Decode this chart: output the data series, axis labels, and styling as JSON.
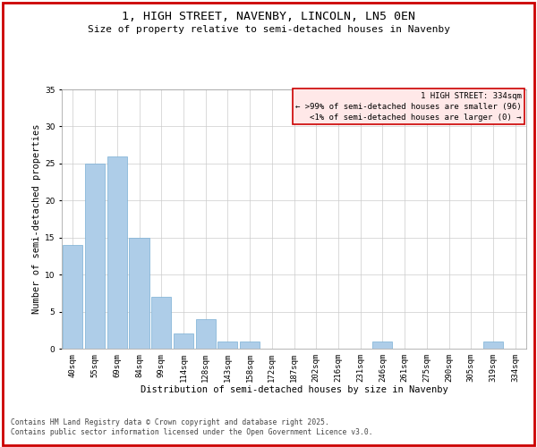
{
  "title": "1, HIGH STREET, NAVENBY, LINCOLN, LN5 0EN",
  "subtitle": "Size of property relative to semi-detached houses in Navenby",
  "xlabel": "Distribution of semi-detached houses by size in Navenby",
  "ylabel": "Number of semi-detached properties",
  "categories": [
    "40sqm",
    "55sqm",
    "69sqm",
    "84sqm",
    "99sqm",
    "114sqm",
    "128sqm",
    "143sqm",
    "158sqm",
    "172sqm",
    "187sqm",
    "202sqm",
    "216sqm",
    "231sqm",
    "246sqm",
    "261sqm",
    "275sqm",
    "290sqm",
    "305sqm",
    "319sqm",
    "334sqm"
  ],
  "values": [
    14,
    25,
    26,
    15,
    7,
    2,
    4,
    1,
    1,
    0,
    0,
    0,
    0,
    0,
    1,
    0,
    0,
    0,
    0,
    1,
    0
  ],
  "bar_color": "#aecde8",
  "bar_edge_color": "#7aafd4",
  "ylim": [
    0,
    35
  ],
  "yticks": [
    0,
    5,
    10,
    15,
    20,
    25,
    30,
    35
  ],
  "legend_title": "1 HIGH STREET: 334sqm",
  "legend_line1": "← >99% of semi-detached houses are smaller (96)",
  "legend_line2": "<1% of semi-detached houses are larger (0) →",
  "legend_box_color": "#ffe8e8",
  "legend_box_edge": "#cc0000",
  "footer1": "Contains HM Land Registry data © Crown copyright and database right 2025.",
  "footer2": "Contains public sector information licensed under the Open Government Licence v3.0.",
  "background_color": "#ffffff",
  "grid_color": "#cccccc",
  "title_fontsize": 9.5,
  "subtitle_fontsize": 8,
  "axis_label_fontsize": 7.5,
  "tick_fontsize": 6.5,
  "legend_fontsize": 6.5,
  "footer_fontsize": 5.8
}
